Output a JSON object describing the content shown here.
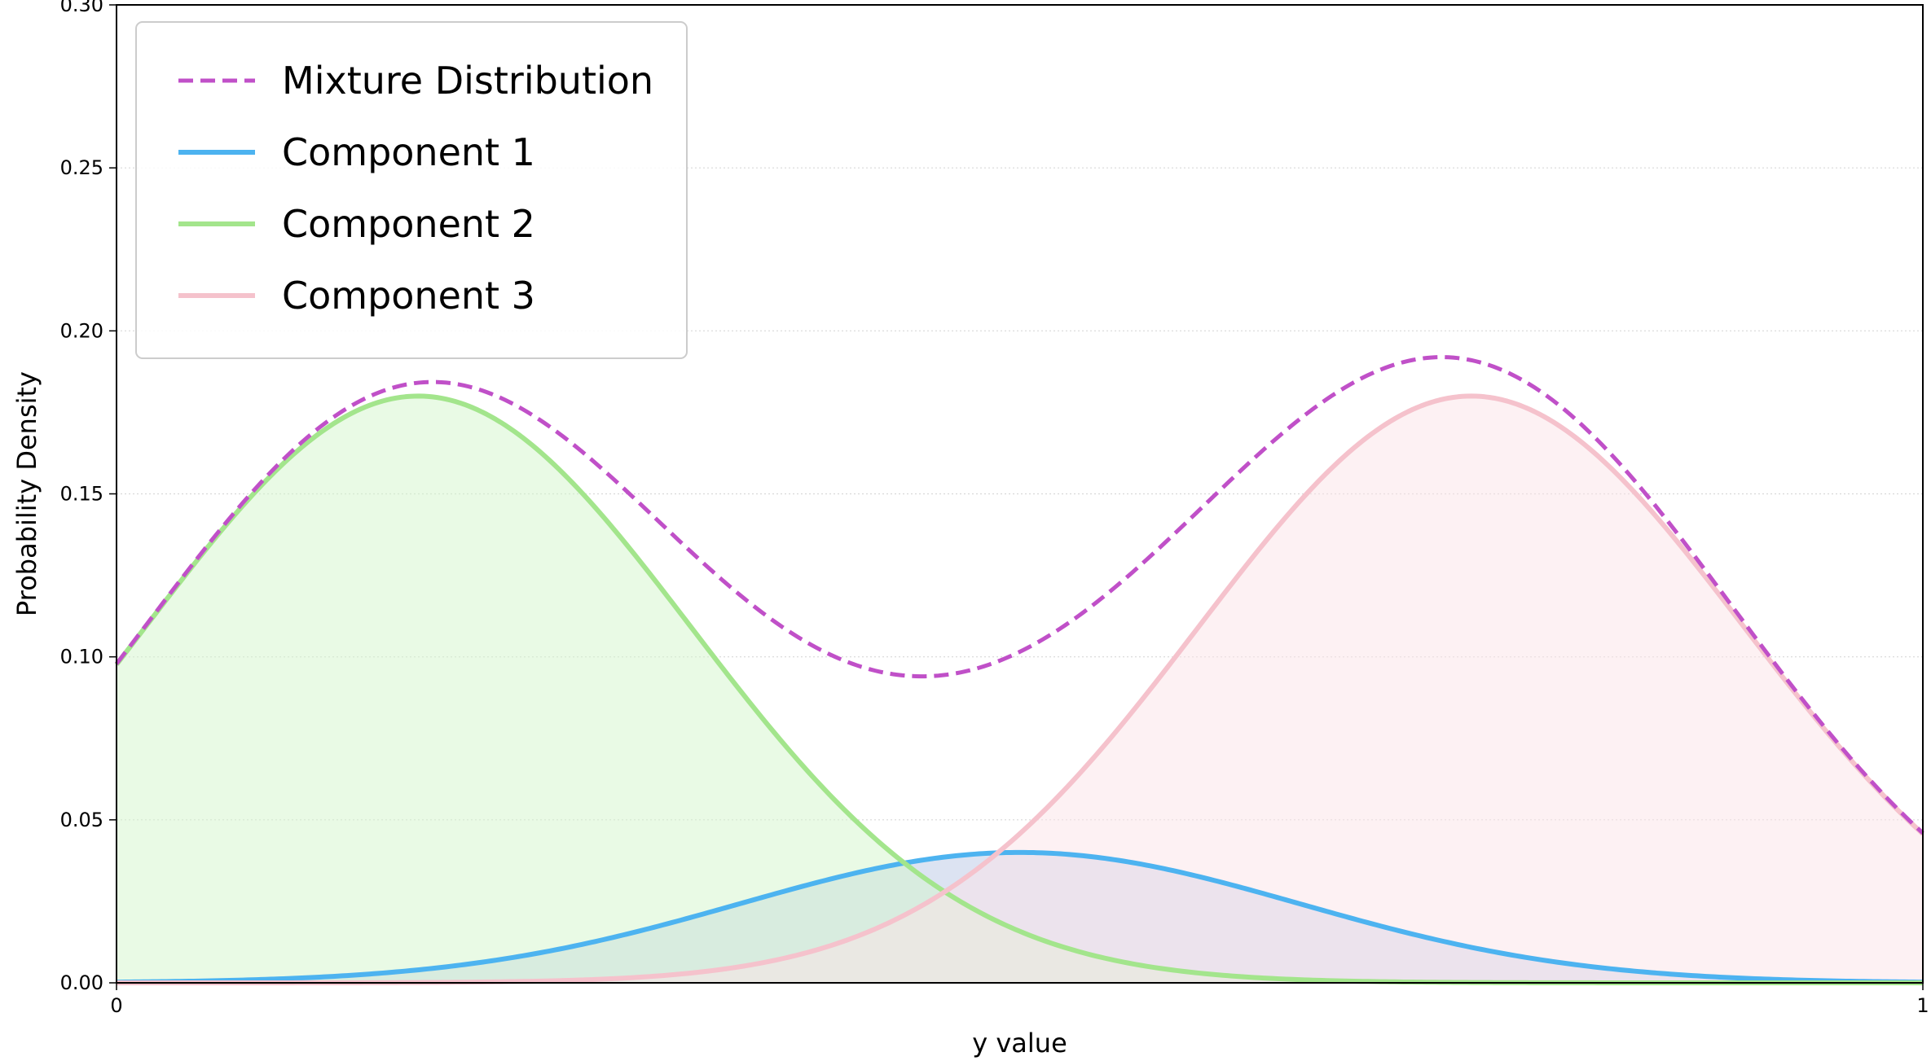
{
  "chart_data": {
    "type": "line",
    "title": "",
    "xlabel": "y value",
    "ylabel": "Probability Density",
    "xlim": [
      0,
      1
    ],
    "ylim": [
      0,
      0.3
    ],
    "x_ticks": [
      0,
      1
    ],
    "x_tick_labels": [
      "0",
      "1"
    ],
    "y_ticks": [
      0,
      0.05,
      0.1,
      0.15,
      0.2,
      0.25,
      0.3
    ],
    "y_tick_labels": [
      "0.00",
      "0.05",
      "0.10",
      "0.15",
      "0.20",
      "0.25",
      "0.30"
    ],
    "grid": "horizontal dotted",
    "legend_position": "top-left",
    "series": [
      {
        "name": "Mixture Distribution",
        "style": "dashed",
        "color": "#c050c8",
        "fill": false,
        "role": "sum of components"
      },
      {
        "name": "Component 1",
        "style": "solid",
        "color": "#4db3f0",
        "fill": true,
        "fill_color": "#b9c8e6",
        "mean": 0.5,
        "peak_density": 0.04,
        "sigma": 0.155
      },
      {
        "name": "Component 2",
        "style": "solid",
        "color": "#a3e58c",
        "fill": true,
        "fill_color": "#d4f5cc",
        "mean": 0.167,
        "peak_density": 0.18,
        "sigma": 0.151
      },
      {
        "name": "Component 3",
        "style": "solid",
        "color": "#f5c2cc",
        "fill": true,
        "fill_color": "#fbe3e8",
        "mean": 0.75,
        "peak_density": 0.18,
        "sigma": 0.151
      }
    ],
    "mixture_points": [
      {
        "x": 0,
        "y": 0.11
      },
      {
        "x": 0.178,
        "y": 0.186
      },
      {
        "x": 0.447,
        "y": 0.116
      },
      {
        "x": 0.728,
        "y": 0.194
      },
      {
        "x": 1,
        "y": 0.058
      }
    ]
  }
}
